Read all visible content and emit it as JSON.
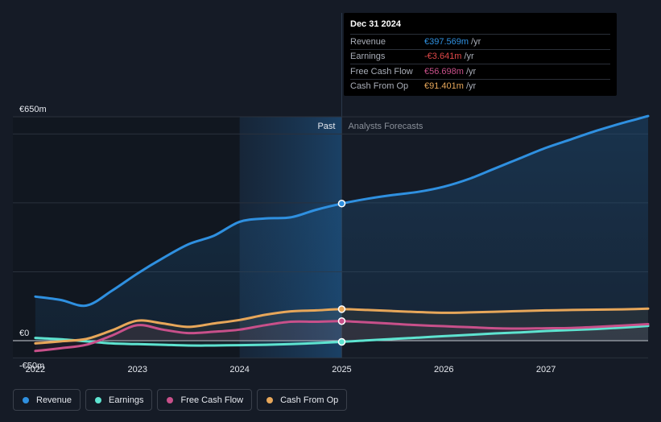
{
  "chart_data": {
    "type": "line",
    "x": [
      2022.0,
      2022.25,
      2022.5,
      2022.75,
      2023.0,
      2023.25,
      2023.5,
      2023.75,
      2024.0,
      2024.25,
      2024.5,
      2024.75,
      2025.0,
      2025.25,
      2025.5,
      2025.75,
      2026.0,
      2026.25,
      2026.5,
      2026.75,
      2027.0,
      2027.25,
      2027.5,
      2027.75,
      2028.0
    ],
    "series": [
      {
        "name": "Revenue",
        "color": "#2f90e0",
        "values": [
          128,
          118,
          102,
          145,
          195,
          240,
          280,
          305,
          345,
          355,
          358,
          380,
          398,
          412,
          423,
          432,
          447,
          470,
          500,
          530,
          560,
          585,
          610,
          632,
          652
        ]
      },
      {
        "name": "Earnings",
        "color": "#5ee3d0",
        "values": [
          8,
          4,
          -2,
          -8,
          -10,
          -12,
          -14,
          -14,
          -13,
          -12,
          -10,
          -7,
          -3.6,
          1,
          5,
          9,
          13,
          17,
          21,
          24,
          28,
          31,
          34,
          38,
          43
        ]
      },
      {
        "name": "Free Cash Flow",
        "color": "#c8508a",
        "values": [
          -30,
          -22,
          -12,
          15,
          45,
          32,
          22,
          26,
          32,
          45,
          55,
          55,
          56.7,
          53,
          49,
          45,
          42,
          39,
          36,
          35,
          36,
          37,
          40,
          44,
          48
        ]
      },
      {
        "name": "Cash From Op",
        "color": "#e7a75a",
        "values": [
          -8,
          -2,
          5,
          30,
          58,
          50,
          40,
          50,
          60,
          75,
          85,
          88,
          91.4,
          89,
          86,
          83,
          81,
          82,
          84,
          86,
          88,
          89,
          90,
          91,
          93
        ]
      }
    ],
    "x_ticks": [
      2022,
      2023,
      2024,
      2025,
      2026,
      2027
    ],
    "x_tick_labels": [
      "2022",
      "2023",
      "2024",
      "2025",
      "2026",
      "2027"
    ],
    "y_labels": [
      {
        "value": 650,
        "label": "€650m"
      },
      {
        "value": 0,
        "label": "€0"
      },
      {
        "value": -50,
        "label": "-€50m"
      }
    ],
    "ylim": [
      -50,
      650
    ],
    "xlim": [
      2021.78,
      2028.0
    ],
    "past_forecast_split": 2025,
    "past_shade_start": 2024,
    "past_label": "Past",
    "forecast_label": "Analysts Forecasts"
  },
  "tooltip": {
    "date": "Dec 31 2024",
    "rows": [
      {
        "label": "Revenue",
        "value": "€397.569m",
        "unit": "/yr",
        "color": "#2f90e0"
      },
      {
        "label": "Earnings",
        "value": "-€3.641m",
        "unit": "/yr",
        "color": "#e04848"
      },
      {
        "label": "Free Cash Flow",
        "value": "€56.698m",
        "unit": "/yr",
        "color": "#c8508a"
      },
      {
        "label": "Cash From Op",
        "value": "€91.401m",
        "unit": "/yr",
        "color": "#e7a75a"
      }
    ]
  },
  "legend": [
    {
      "label": "Revenue",
      "color": "#2f90e0"
    },
    {
      "label": "Earnings",
      "color": "#5ee3d0"
    },
    {
      "label": "Free Cash Flow",
      "color": "#c8508a"
    },
    {
      "label": "Cash From Op",
      "color": "#e7a75a"
    }
  ]
}
